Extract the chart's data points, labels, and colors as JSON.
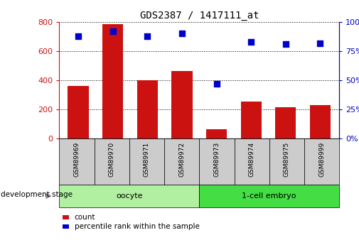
{
  "title": "GDS2387 / 1417111_at",
  "samples": [
    "GSM89969",
    "GSM89970",
    "GSM89971",
    "GSM89972",
    "GSM89973",
    "GSM89974",
    "GSM89975",
    "GSM89999"
  ],
  "counts": [
    360,
    785,
    400,
    465,
    65,
    255,
    215,
    230
  ],
  "percentiles": [
    88,
    92,
    88,
    90,
    47,
    83,
    81,
    82
  ],
  "bar_color": "#cc1111",
  "dot_color": "#0000cc",
  "ylim_left": [
    0,
    800
  ],
  "ylim_right": [
    0,
    100
  ],
  "yticks_left": [
    0,
    200,
    400,
    600,
    800
  ],
  "yticks_right": [
    0,
    25,
    50,
    75,
    100
  ],
  "group_configs": [
    {
      "start": 0,
      "end": 4,
      "label": "oocyte",
      "color": "#b0f0a0"
    },
    {
      "start": 4,
      "end": 8,
      "label": "1-cell embryo",
      "color": "#44dd44"
    }
  ],
  "group_header": "development stage",
  "legend_count_label": "count",
  "legend_pct_label": "percentile rank within the sample",
  "bg_color": "#ffffff",
  "sample_cell_color": "#cccccc",
  "left_axis_color": "#cc1111",
  "right_axis_color": "#0000cc"
}
